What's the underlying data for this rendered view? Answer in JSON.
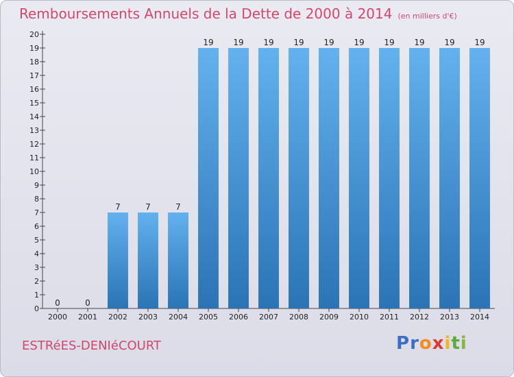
{
  "chart_data": {
    "type": "bar",
    "title": "Remboursements Annuels de la Dette de 2000 à 2014",
    "subtitle": "(en milliers d'€)",
    "categories": [
      "2000",
      "2001",
      "2002",
      "2003",
      "2004",
      "2005",
      "2006",
      "2007",
      "2008",
      "2009",
      "2010",
      "2011",
      "2012",
      "2013",
      "2014"
    ],
    "values": [
      0,
      0,
      7,
      7,
      7,
      19,
      19,
      19,
      19,
      19,
      19,
      19,
      19,
      19,
      19
    ],
    "ylim": [
      0,
      20
    ],
    "yticks": [
      0,
      1,
      2,
      3,
      4,
      5,
      6,
      7,
      8,
      9,
      10,
      11,
      12,
      13,
      14,
      15,
      16,
      17,
      18,
      19,
      20
    ],
    "grid": false,
    "bar_color_light": "#63b1ee",
    "bar_color_dark": "#2a74b5"
  },
  "footer": {
    "commune": "ESTRéES-DENIéCOURT",
    "logo": [
      "P",
      "r",
      "o",
      "x",
      "i",
      "t",
      "i"
    ]
  }
}
